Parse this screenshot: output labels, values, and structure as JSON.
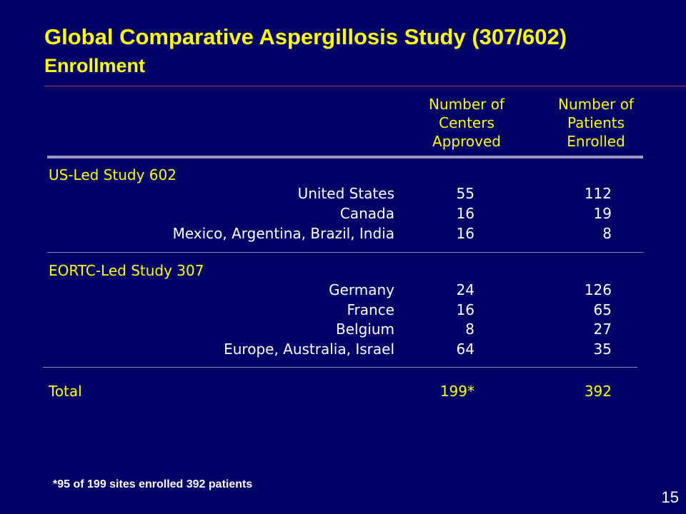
{
  "slide": {
    "title": "Global Comparative Aspergillosis Study (307/602)",
    "subtitle": "Enrollment",
    "page_number": "15",
    "footnote": "*95 of 199 sites enrolled 392 patients",
    "colors": {
      "background": "#000066",
      "accent": "#ffff00",
      "text": "#ffffff"
    }
  },
  "table": {
    "headers": {
      "centers": [
        "Number of",
        "Centers",
        "Approved"
      ],
      "patients": [
        "Number of",
        "Patients",
        "Enrolled"
      ]
    },
    "sections": [
      {
        "title": "US-Led Study 602",
        "rows": [
          {
            "label": "United States",
            "centers": "55",
            "patients": "112"
          },
          {
            "label": "Canada",
            "centers": "16",
            "patients": "19"
          },
          {
            "label": "Mexico, Argentina, Brazil, India",
            "centers": "16",
            "patients": "8"
          }
        ]
      },
      {
        "title": "EORTC-Led Study 307",
        "rows": [
          {
            "label": "Germany",
            "centers": "24",
            "patients": "126"
          },
          {
            "label": "France",
            "centers": "16",
            "patients": "65"
          },
          {
            "label": "Belgium",
            "centers": "8",
            "patients": "27"
          },
          {
            "label": "Europe, Australia, Israel",
            "centers": "64",
            "patients": "35"
          }
        ]
      }
    ],
    "total": {
      "label": "Total",
      "centers": "199*",
      "patients": "392"
    }
  }
}
